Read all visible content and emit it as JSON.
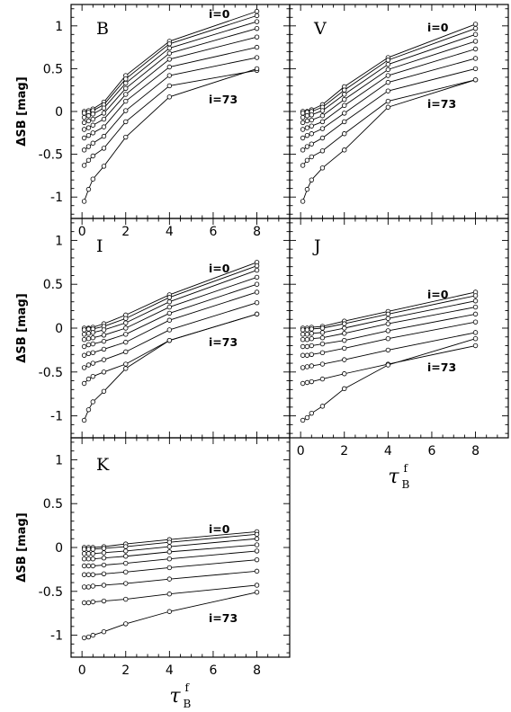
{
  "chart_data": [
    {
      "type": "line",
      "panel": "B",
      "xlabel": "",
      "ylabel": "ΔSB [mag]",
      "xlim": [
        -0.5,
        9.5
      ],
      "ylim": [
        -1.25,
        1.25
      ],
      "xticks": [
        "0",
        "2",
        "4",
        "6",
        "8"
      ],
      "yticks": [
        "-1",
        "-0.5",
        "0",
        "0.5",
        "1"
      ],
      "annotations": [
        "i=0",
        "i=73"
      ],
      "x": [
        0.1,
        0.3,
        0.5,
        1,
        2,
        4,
        8
      ],
      "series": [
        {
          "values": [
            0.0,
            0.01,
            0.03,
            0.11,
            0.42,
            0.82,
            1.17
          ]
        },
        {
          "values": [
            -0.02,
            -0.01,
            0.01,
            0.08,
            0.38,
            0.79,
            1.12
          ]
        },
        {
          "values": [
            -0.07,
            -0.05,
            -0.03,
            0.04,
            0.33,
            0.74,
            1.05
          ]
        },
        {
          "values": [
            -0.13,
            -0.11,
            -0.09,
            -0.02,
            0.27,
            0.68,
            0.97
          ]
        },
        {
          "values": [
            -0.21,
            -0.19,
            -0.16,
            -0.09,
            0.2,
            0.61,
            0.87
          ]
        },
        {
          "values": [
            -0.31,
            -0.28,
            -0.25,
            -0.18,
            0.12,
            0.52,
            0.75
          ]
        },
        {
          "values": [
            -0.45,
            -0.41,
            -0.37,
            -0.29,
            0.01,
            0.42,
            0.63
          ]
        },
        {
          "values": [
            -0.63,
            -0.57,
            -0.52,
            -0.43,
            -0.12,
            0.3,
            0.48
          ]
        },
        {
          "values": [
            -1.05,
            -0.91,
            -0.79,
            -0.64,
            -0.3,
            0.17,
            0.5
          ]
        }
      ]
    },
    {
      "type": "line",
      "panel": "V",
      "xlabel": "",
      "ylabel": "",
      "xlim": [
        -0.5,
        9.5
      ],
      "ylim": [
        -1.25,
        1.25
      ],
      "xticks": [],
      "yticks": [],
      "annotations": [
        "i=0",
        "i=73"
      ],
      "x": [
        0.1,
        0.3,
        0.5,
        1,
        2,
        4,
        8
      ],
      "series": [
        {
          "values": [
            0.0,
            0.0,
            0.02,
            0.08,
            0.29,
            0.63,
            1.02
          ]
        },
        {
          "values": [
            -0.02,
            -0.01,
            0.0,
            0.05,
            0.25,
            0.6,
            0.97
          ]
        },
        {
          "values": [
            -0.07,
            -0.05,
            -0.04,
            0.01,
            0.2,
            0.55,
            0.9
          ]
        },
        {
          "values": [
            -0.13,
            -0.11,
            -0.1,
            -0.05,
            0.14,
            0.49,
            0.82
          ]
        },
        {
          "values": [
            -0.21,
            -0.19,
            -0.17,
            -0.12,
            0.07,
            0.42,
            0.73
          ]
        },
        {
          "values": [
            -0.31,
            -0.28,
            -0.26,
            -0.2,
            -0.02,
            0.34,
            0.62
          ]
        },
        {
          "values": [
            -0.45,
            -0.41,
            -0.38,
            -0.31,
            -0.12,
            0.24,
            0.5
          ]
        },
        {
          "values": [
            -0.63,
            -0.57,
            -0.53,
            -0.46,
            -0.26,
            0.12,
            0.37
          ]
        },
        {
          "values": [
            -1.05,
            -0.91,
            -0.8,
            -0.66,
            -0.45,
            0.05,
            0.37
          ]
        }
      ]
    },
    {
      "type": "line",
      "panel": "I",
      "xlabel": "",
      "ylabel": "ΔSB [mag]",
      "xlim": [
        -0.5,
        9.5
      ],
      "ylim": [
        -1.25,
        1.25
      ],
      "xticks": [],
      "yticks": [
        "-1",
        "-0.5",
        "0",
        "0.5",
        "1"
      ],
      "annotations": [
        "i=0",
        "i=73"
      ],
      "x": [
        0.1,
        0.3,
        0.5,
        1,
        2,
        4,
        8
      ],
      "series": [
        {
          "values": [
            0.0,
            0.0,
            0.01,
            0.05,
            0.15,
            0.38,
            0.75
          ]
        },
        {
          "values": [
            -0.02,
            -0.01,
            -0.01,
            0.02,
            0.11,
            0.35,
            0.71
          ]
        },
        {
          "values": [
            -0.07,
            -0.06,
            -0.05,
            -0.02,
            0.06,
            0.3,
            0.66
          ]
        },
        {
          "values": [
            -0.13,
            -0.12,
            -0.11,
            -0.08,
            0.0,
            0.24,
            0.58
          ]
        },
        {
          "values": [
            -0.21,
            -0.19,
            -0.18,
            -0.15,
            -0.07,
            0.17,
            0.5
          ]
        },
        {
          "values": [
            -0.31,
            -0.29,
            -0.28,
            -0.24,
            -0.16,
            0.09,
            0.41
          ]
        },
        {
          "values": [
            -0.45,
            -0.42,
            -0.4,
            -0.36,
            -0.27,
            -0.02,
            0.29
          ]
        },
        {
          "values": [
            -0.63,
            -0.58,
            -0.55,
            -0.5,
            -0.41,
            -0.14,
            0.16
          ]
        },
        {
          "values": [
            -1.05,
            -0.93,
            -0.84,
            -0.72,
            -0.46,
            -0.14,
            0.16
          ]
        }
      ]
    },
    {
      "type": "line",
      "panel": "J",
      "xlabel": "τ",
      "xlabel_sub": "B",
      "xlabel_sup": "f",
      "ylabel": "",
      "xlim": [
        -0.5,
        9.5
      ],
      "ylim": [
        -1.25,
        1.25
      ],
      "xticks": [
        "0",
        "2",
        "4",
        "6",
        "8"
      ],
      "yticks": [],
      "annotations": [
        "i=0",
        "i=73"
      ],
      "x": [
        0.1,
        0.3,
        0.5,
        1,
        2,
        4,
        8
      ],
      "series": [
        {
          "values": [
            0.0,
            0.0,
            0.01,
            0.02,
            0.08,
            0.19,
            0.41
          ]
        },
        {
          "values": [
            -0.02,
            -0.02,
            -0.01,
            0.0,
            0.05,
            0.16,
            0.37
          ]
        },
        {
          "values": [
            -0.07,
            -0.07,
            -0.06,
            -0.05,
            0.0,
            0.11,
            0.31
          ]
        },
        {
          "values": [
            -0.13,
            -0.13,
            -0.12,
            -0.11,
            -0.06,
            0.05,
            0.24
          ]
        },
        {
          "values": [
            -0.21,
            -0.21,
            -0.2,
            -0.18,
            -0.14,
            -0.03,
            0.16
          ]
        },
        {
          "values": [
            -0.31,
            -0.31,
            -0.3,
            -0.28,
            -0.23,
            -0.12,
            0.07
          ]
        },
        {
          "values": [
            -0.45,
            -0.44,
            -0.43,
            -0.41,
            -0.36,
            -0.25,
            -0.05
          ]
        },
        {
          "values": [
            -0.63,
            -0.62,
            -0.61,
            -0.58,
            -0.52,
            -0.41,
            -0.2
          ]
        },
        {
          "values": [
            -1.05,
            -1.02,
            -0.97,
            -0.89,
            -0.69,
            -0.42,
            -0.12
          ]
        }
      ]
    },
    {
      "type": "line",
      "panel": "K",
      "xlabel": "τ",
      "xlabel_sub": "B",
      "xlabel_sup": "f",
      "ylabel": "ΔSB [mag]",
      "xlim": [
        -0.5,
        9.5
      ],
      "ylim": [
        -1.25,
        1.25
      ],
      "xticks": [
        "0",
        "2",
        "4",
        "6",
        "8"
      ],
      "yticks": [
        "-1",
        "-0.5",
        "0",
        "0.5",
        "1"
      ],
      "annotations": [
        "i=0",
        "i=73"
      ],
      "x": [
        0.1,
        0.3,
        0.5,
        1,
        2,
        4,
        8
      ],
      "series": [
        {
          "values": [
            0.0,
            0.0,
            0.0,
            0.01,
            0.04,
            0.09,
            0.18
          ]
        },
        {
          "values": [
            -0.02,
            -0.02,
            -0.02,
            -0.01,
            0.01,
            0.06,
            0.15
          ]
        },
        {
          "values": [
            -0.07,
            -0.07,
            -0.07,
            -0.06,
            -0.04,
            0.01,
            0.1
          ]
        },
        {
          "values": [
            -0.13,
            -0.13,
            -0.13,
            -0.12,
            -0.1,
            -0.05,
            0.03
          ]
        },
        {
          "values": [
            -0.21,
            -0.21,
            -0.21,
            -0.2,
            -0.18,
            -0.13,
            -0.04
          ]
        },
        {
          "values": [
            -0.31,
            -0.31,
            -0.31,
            -0.3,
            -0.28,
            -0.23,
            -0.14
          ]
        },
        {
          "values": [
            -0.45,
            -0.45,
            -0.44,
            -0.43,
            -0.41,
            -0.36,
            -0.27
          ]
        },
        {
          "values": [
            -0.63,
            -0.63,
            -0.62,
            -0.61,
            -0.59,
            -0.53,
            -0.43
          ]
        },
        {
          "values": [
            -1.03,
            -1.02,
            -1.0,
            -0.96,
            -0.87,
            -0.73,
            -0.51
          ]
        }
      ]
    }
  ]
}
